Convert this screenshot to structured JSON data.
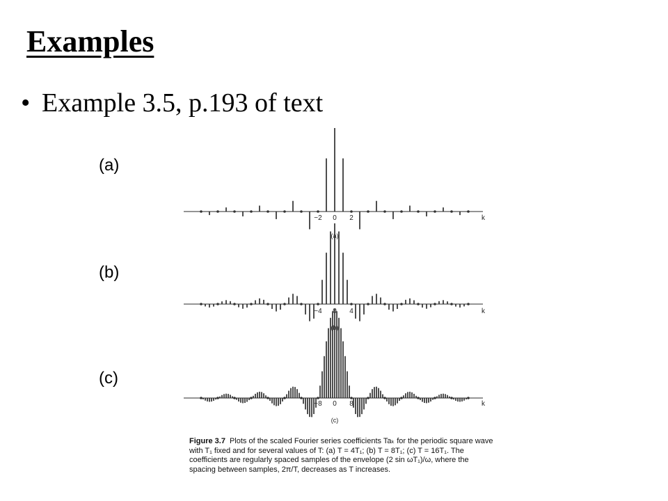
{
  "slide": {
    "title": "Examples",
    "bullet": "Example 3.5, p.193 of text",
    "panel_labels": [
      "(a)",
      "(b)",
      "(c)"
    ]
  },
  "figure": {
    "number": "Figure 3.7",
    "caption": "Plots of the scaled Fourier series coefficients Taₖ for the periodic square wave with T₁ fixed and for several values of T: (a) T = 4T₁; (b) T = 8T₁; (c) T = 16T₁. The coefficients are regularly spaced samples of the envelope (2 sin ωT₁)/ω, where the spacing between samples, 2π/T, decreases as T increases."
  },
  "chart_data": [
    {
      "type": "bar",
      "name_label": "(a)",
      "xlabel": "k",
      "k_min": -16,
      "k_max": 16,
      "tick_labels": [
        {
          "k": -2,
          "text": "−2"
        },
        {
          "k": 0,
          "text": "0"
        },
        {
          "k": 2,
          "text": "2"
        }
      ],
      "sub_label": "(a)",
      "samples_per_lobe": 4,
      "max_value": 1.0
    },
    {
      "type": "bar",
      "name_label": "(b)",
      "xlabel": "k",
      "k_min": -32,
      "k_max": 32,
      "tick_labels": [
        {
          "k": -4,
          "text": "−4"
        },
        {
          "k": 0,
          "text": "0"
        },
        {
          "k": 4,
          "text": "4"
        }
      ],
      "sub_label": "(b)",
      "samples_per_lobe": 8,
      "max_value": 0.5
    },
    {
      "type": "bar",
      "name_label": "(c)",
      "xlabel": "k",
      "k_min": -64,
      "k_max": 64,
      "tick_labels": [
        {
          "k": -8,
          "text": "−8"
        },
        {
          "k": 0,
          "text": "0"
        },
        {
          "k": 8,
          "text": "8"
        }
      ],
      "sub_label": "(c)",
      "samples_per_lobe": 16,
      "max_value": 0.25
    }
  ]
}
